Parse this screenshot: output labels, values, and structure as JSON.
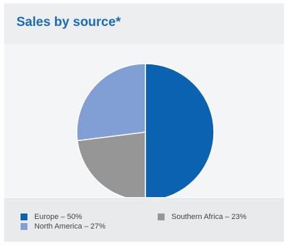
{
  "chart_data": {
    "type": "pie",
    "title": "Sales by source*",
    "slices": [
      {
        "label": "Europe – 50%",
        "value": 50,
        "color": "#0a62b0"
      },
      {
        "label": "Southern Africa – 23%",
        "value": 23,
        "color": "#969696"
      },
      {
        "label": "North America – 27%",
        "value": 27,
        "color": "#819fd4"
      }
    ],
    "legend_position": "bottom"
  },
  "colors": {
    "title": "#1a6bb8",
    "header_bg": "#eceef0",
    "plot_bg": "#f4f5f6",
    "legend_bg": "#e8eaec"
  }
}
